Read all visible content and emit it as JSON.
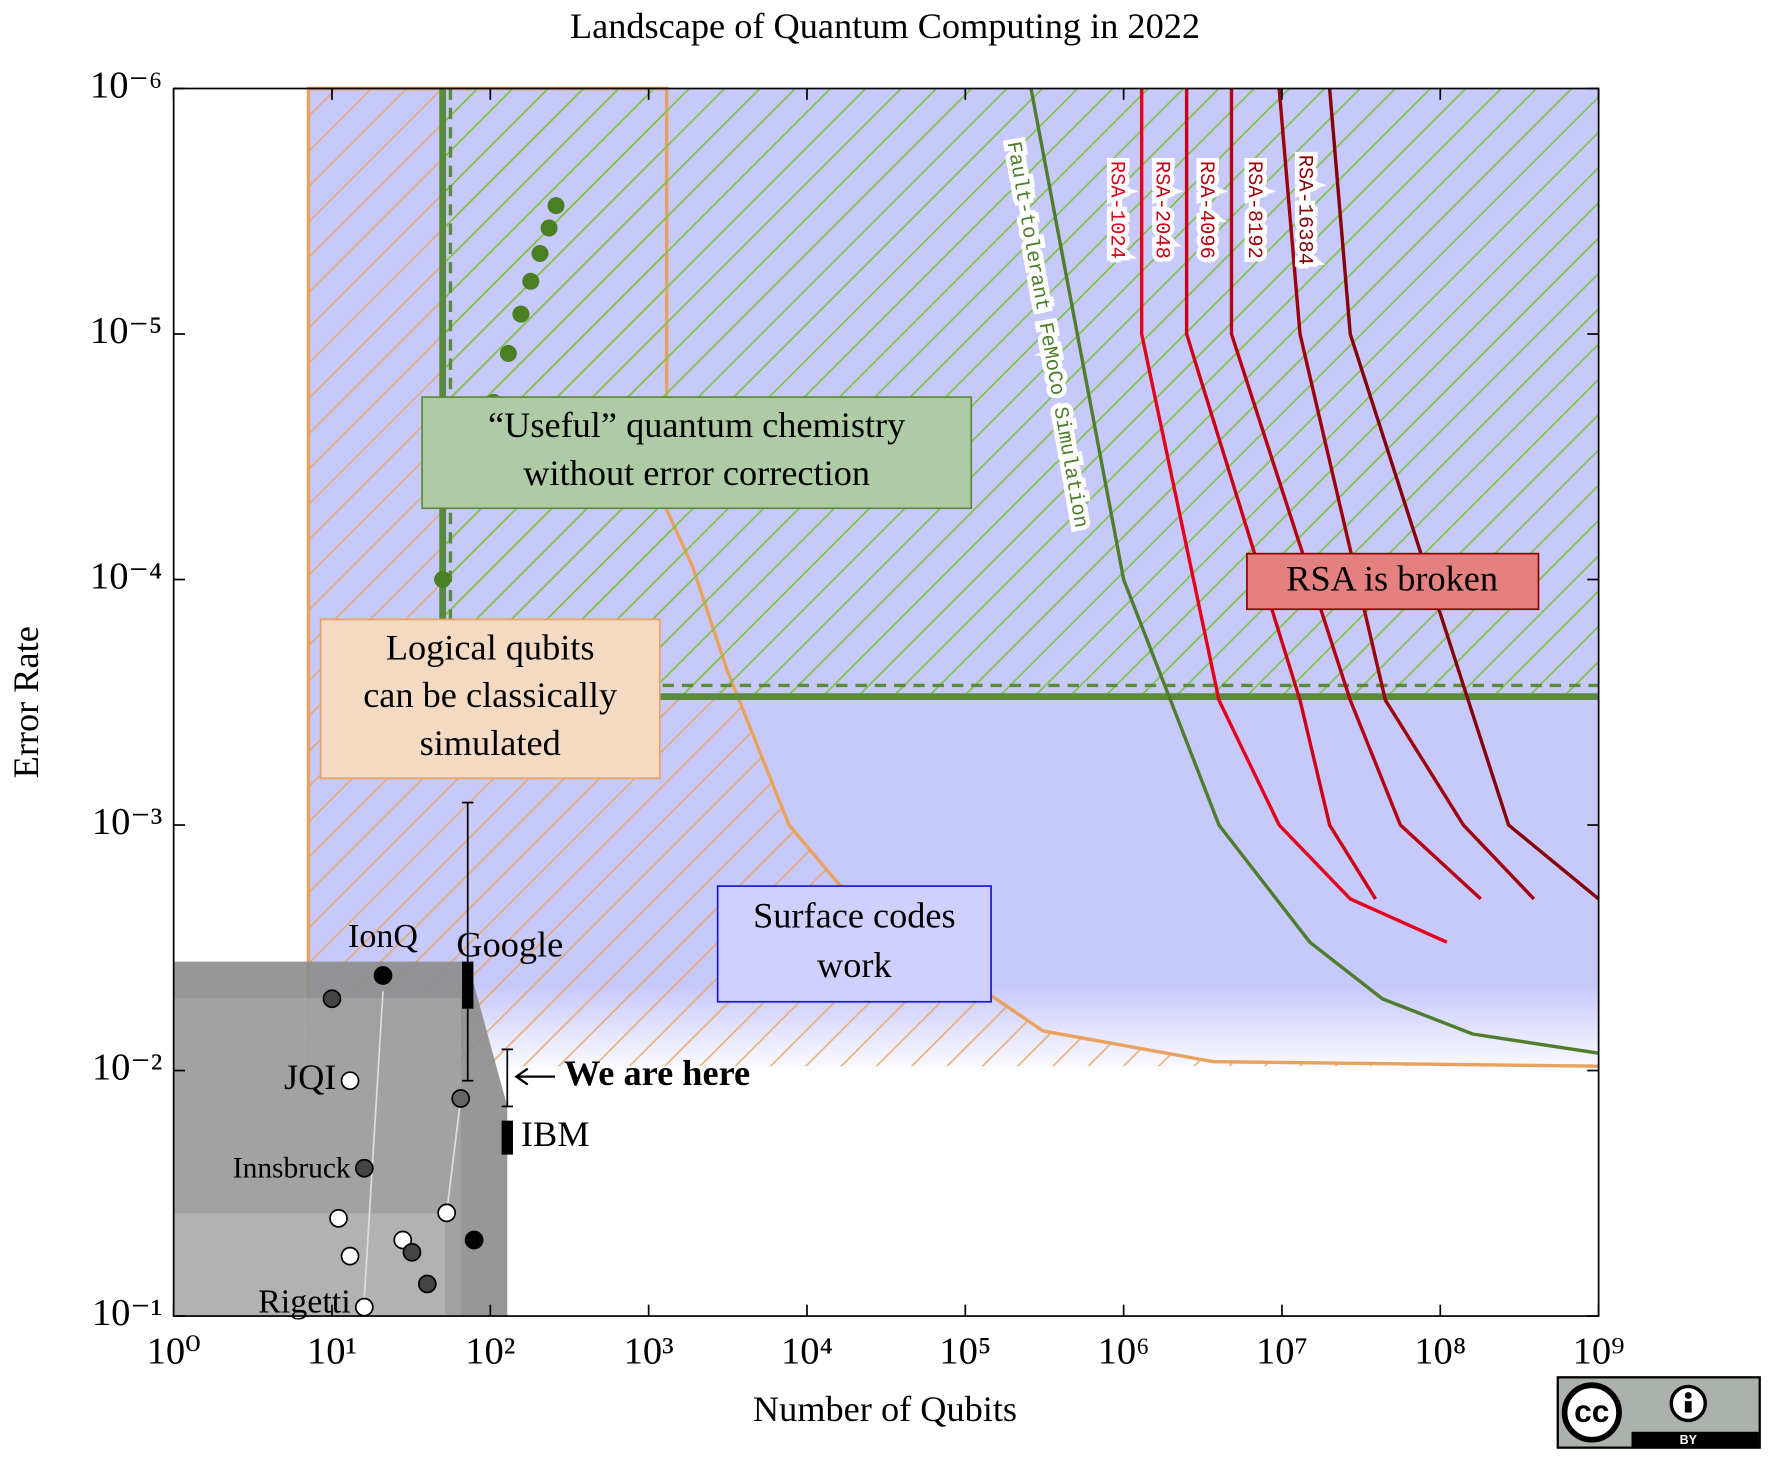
{
  "chart_data": {
    "type": "landscape",
    "title": "Landscape of Quantum Computing in 2022",
    "xlabel": "Number of Qubits",
    "ylabel": "Error Rate",
    "log": true,
    "y_inverted": true,
    "xlim": [
      1,
      1000000000
    ],
    "ylim": [
      1e-06,
      0.1
    ],
    "xticks": [
      {
        "value": 1,
        "label": "10⁰"
      },
      {
        "value": 10,
        "label": "10¹"
      },
      {
        "value": 100,
        "label": "10²"
      },
      {
        "value": 1000,
        "label": "10³"
      },
      {
        "value": 10000,
        "label": "10⁴"
      },
      {
        "value": 100000,
        "label": "10⁵"
      },
      {
        "value": 1000000,
        "label": "10⁶"
      },
      {
        "value": 10000000,
        "label": "10⁷"
      },
      {
        "value": 100000000,
        "label": "10⁸"
      },
      {
        "value": 1000000000,
        "label": "10⁹"
      }
    ],
    "yticks": [
      {
        "value": 1e-06,
        "label": "10⁻⁶"
      },
      {
        "value": 1e-05,
        "label": "10⁻⁵"
      },
      {
        "value": 0.0001,
        "label": "10⁻⁴"
      },
      {
        "value": 0.001,
        "label": "10⁻³"
      },
      {
        "value": 0.01,
        "label": "10⁻²"
      },
      {
        "value": 0.1,
        "label": "10⁻¹"
      }
    ],
    "regions": {
      "surface": {
        "label": [
          "Surface codes",
          "work"
        ],
        "color": "#c8c9fb",
        "x": [
          7.1,
          1000000000
        ],
        "y": [
          1e-06,
          0.01
        ]
      },
      "classical": {
        "label": [
          "Logical qubits",
          "can be classically",
          "simulated"
        ],
        "color": "#e9a25e",
        "x": [
          7.1,
          7.1,
          1300,
          1300,
          1900,
          3100,
          7700,
          16000,
          43000,
          310000,
          3700000,
          1000000000
        ],
        "y": [
          0.0096,
          1e-06,
          1e-06,
          5.2e-05,
          8.9e-05,
          0.00023,
          0.001,
          0.00175,
          0.0029,
          0.0069,
          0.0092,
          0.0096
        ]
      },
      "chemistry": {
        "label": [
          "“Useful” quantum chemistry",
          "without error correction"
        ],
        "color": "#5a8a3c",
        "x": [
          50,
          1000000000
        ],
        "y": [
          1e-06,
          0.0003
        ],
        "dashed_x": 56,
        "dashed_y": 0.00027
      },
      "current": {
        "label": "We are here",
        "x": [
          1,
          72,
          128,
          128,
          1
        ],
        "y": [
          0.0036,
          0.0036,
          0.014,
          0.1,
          0.1
        ]
      }
    },
    "chemistry_points": {
      "color": "#4a7f23",
      "x": [
        50,
        105,
        130,
        156,
        180,
        206,
        235,
        260
      ],
      "y": [
        0.0001,
        1.9e-05,
        1.2e-05,
        8.3e-06,
        6.1e-06,
        4.7e-06,
        3.7e-06,
        3e-06
      ]
    },
    "curves": [
      {
        "name": "Fault-tolerant FeMoCo Simulation",
        "color": "#4e7d2e",
        "x": [
          260000,
          1000000,
          4000000,
          15000000,
          43000000,
          160000000,
          1000000000
        ],
        "y": [
          1e-06,
          0.0001,
          0.001,
          0.003,
          0.0051,
          0.0071,
          0.0085
        ]
      },
      {
        "name": "RSA-1024",
        "color": "#e3001b",
        "x": [
          1300000,
          1300000,
          4000000,
          9600000,
          27000000,
          110000000
        ],
        "y": [
          1e-06,
          1e-05,
          0.00031,
          0.001,
          0.002,
          0.003
        ]
      },
      {
        "name": "RSA-2048",
        "color": "#cc0015",
        "x": [
          2500000,
          2500000,
          13000000,
          20000000,
          39000000
        ],
        "y": [
          1e-06,
          1e-05,
          0.00031,
          0.001,
          0.002
        ]
      },
      {
        "name": "RSA-4096",
        "color": "#b40010",
        "x": [
          4800000,
          4800000,
          27000000,
          56000000,
          180000000
        ],
        "y": [
          1e-06,
          1e-05,
          0.00031,
          0.001,
          0.002
        ]
      },
      {
        "name": "RSA-8192",
        "color": "#9c000b",
        "x": [
          9600000,
          13000000,
          45000000,
          140000000,
          390000000
        ],
        "y": [
          1e-06,
          1e-05,
          0.00031,
          0.001,
          0.002
        ]
      },
      {
        "name": "RSA-16384",
        "color": "#850008",
        "x": [
          20000000,
          27000000,
          150000000,
          270000000,
          1000000000
        ],
        "y": [
          1e-06,
          1e-05,
          0.00031,
          0.001,
          0.002
        ]
      }
    ],
    "rsa_label": "RSA is broken",
    "devices": [
      {
        "name": "IonQ",
        "x": 21,
        "y": 0.0041,
        "color": "#000000"
      },
      {
        "x": 10,
        "y": 0.0051,
        "color": "#444444"
      },
      {
        "name": "JQI",
        "x": 13,
        "y": 0.011,
        "color": "#ffffff"
      },
      {
        "x": 65,
        "y": 0.013,
        "color": "#666666"
      },
      {
        "name": "Innsbruck",
        "x": 16,
        "y": 0.025,
        "color": "#444444"
      },
      {
        "x": 11,
        "y": 0.04,
        "color": "#ffffff"
      },
      {
        "x": 53,
        "y": 0.038,
        "color": "#ffffff"
      },
      {
        "x": 13,
        "y": 0.057,
        "color": "#ffffff"
      },
      {
        "x": 28,
        "y": 0.049,
        "color": "#ffffff"
      },
      {
        "x": 32,
        "y": 0.055,
        "color": "#444444"
      },
      {
        "x": 40,
        "y": 0.074,
        "color": "#444444"
      },
      {
        "x": 79,
        "y": 0.049,
        "color": "#000000"
      },
      {
        "name": "Rigetti",
        "x": 16,
        "y": 0.092,
        "color": "#ffffff"
      }
    ],
    "google": {
      "label": "Google",
      "x": 72,
      "y": [
        0.0036,
        0.0056
      ],
      "error": [
        0.00081,
        0.011
      ]
    },
    "ibm": {
      "label": "IBM",
      "x": 128,
      "y": [
        0.016,
        0.022
      ],
      "error": [
        0.0082,
        0.014
      ]
    },
    "license": {
      "cc": "cc",
      "by": "BY"
    }
  }
}
